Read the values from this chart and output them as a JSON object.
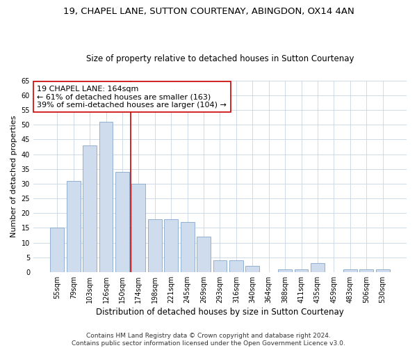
{
  "title1": "19, CHAPEL LANE, SUTTON COURTENAY, ABINGDON, OX14 4AN",
  "title2": "Size of property relative to detached houses in Sutton Courtenay",
  "xlabel": "Distribution of detached houses by size in Sutton Courtenay",
  "ylabel": "Number of detached properties",
  "categories": [
    "55sqm",
    "79sqm",
    "103sqm",
    "126sqm",
    "150sqm",
    "174sqm",
    "198sqm",
    "221sqm",
    "245sqm",
    "269sqm",
    "293sqm",
    "316sqm",
    "340sqm",
    "364sqm",
    "388sqm",
    "411sqm",
    "435sqm",
    "459sqm",
    "483sqm",
    "506sqm",
    "530sqm"
  ],
  "values": [
    15,
    31,
    43,
    51,
    34,
    30,
    18,
    18,
    17,
    12,
    4,
    4,
    2,
    0,
    1,
    1,
    3,
    0,
    1,
    1,
    1
  ],
  "bar_color": "#cfdcee",
  "bar_edge_color": "#7099c2",
  "vline_x": 4.5,
  "vline_color": "#cc0000",
  "annotation_text": "19 CHAPEL LANE: 164sqm\n← 61% of detached houses are smaller (163)\n39% of semi-detached houses are larger (104) →",
  "annotation_box_color": "#ffffff",
  "annotation_box_edge": "#cc0000",
  "footer1": "Contains HM Land Registry data © Crown copyright and database right 2024.",
  "footer2": "Contains public sector information licensed under the Open Government Licence v3.0.",
  "bg_color": "#ffffff",
  "plot_bg_color": "#ffffff",
  "grid_color": "#c8d4e4",
  "title1_fontsize": 9.5,
  "title2_fontsize": 8.5,
  "xlabel_fontsize": 8.5,
  "ylabel_fontsize": 8,
  "tick_fontsize": 7,
  "ann_fontsize": 8,
  "footer_fontsize": 6.5,
  "ylim": [
    0,
    65
  ],
  "yticks": [
    0,
    5,
    10,
    15,
    20,
    25,
    30,
    35,
    40,
    45,
    50,
    55,
    60,
    65
  ]
}
